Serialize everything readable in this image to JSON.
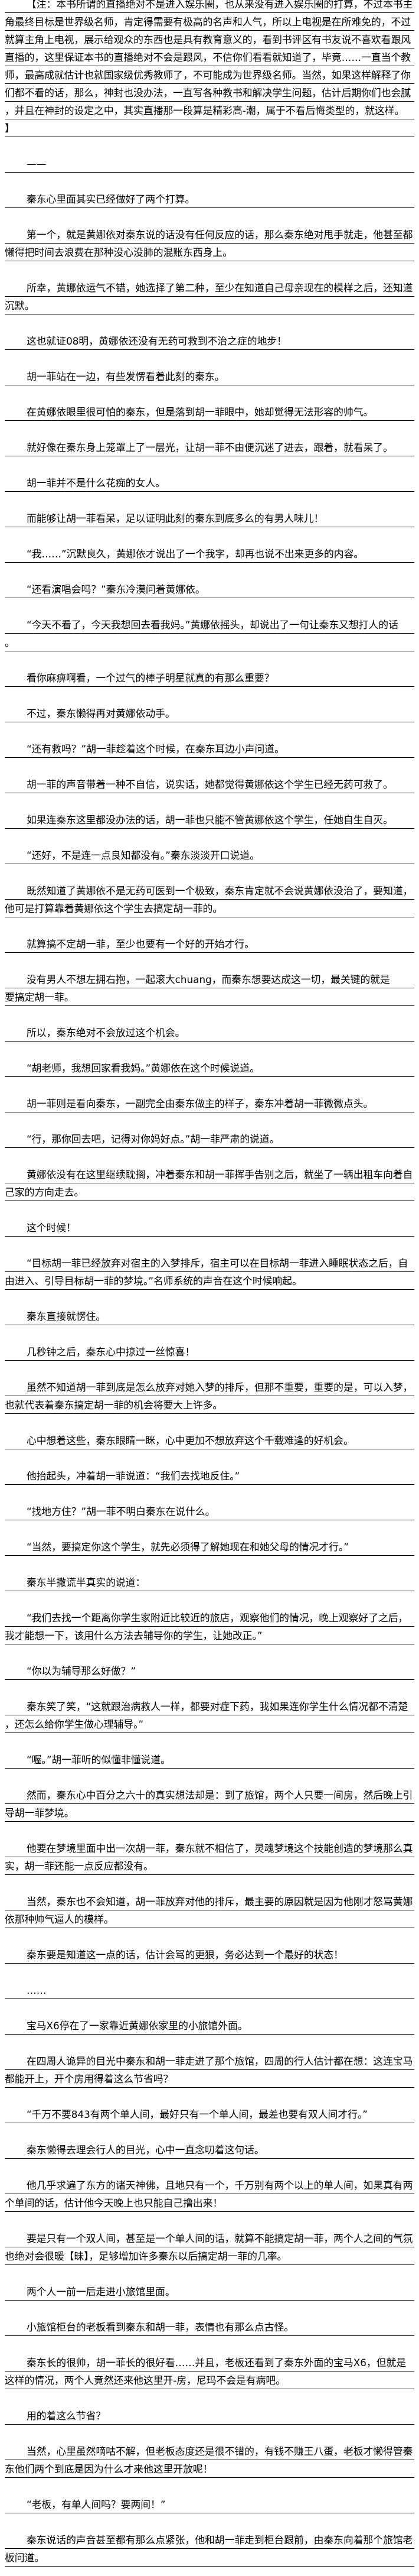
{
  "note": {
    "lines": [
      "【注：本书所谓的直播绝对不是进入娱乐圈，也从来没有进入娱乐圈的打算，不过本书主",
      "角最终目标是世界级名师，肯定得需要有极高的名声和人气，所以上电视是在所难免的，不过",
      "就算主角上电视，展示给观众的东西也是具有教育意义的，看到书评区有书友说不喜欢看跟风",
      "直播的，这里保证本书的直播绝对不会是跟风，不信你们看看就知道了，毕竟……一直当个教",
      "师，最高成就估计也就国家级优秀教师了，不可能成为世界级名师。当然，如果这样解释了你",
      "们都不看的话，那么，神封也没办法，一直写各种教书和解决学生问题，估计后期你们也会腻",
      "，并且在神封的设定之中，其实直播那一段算是精彩高-潮，属于不看后悔类型的，就这样。",
      "】"
    ]
  },
  "paragraphs": [
    [
      "——"
    ],
    [
      "秦东心里面其实已经做好了两个打算。"
    ],
    [
      "第一个，就是黄娜依对秦东说的话没有任何反应的话，那么秦东绝对甩手就走，他甚至都",
      "懒得把时间去浪费在那种没心没肺的混账东西身上。"
    ],
    [
      "所幸，黄娜依运气不错，她选择了第二种，至少在知道自己母亲现在的模样之后，还知道",
      "沉默。"
    ],
    [
      "这也就证08明，黄娜依还没有无药可救到不治之症的地步！"
    ],
    [
      "胡一菲站在一边，有些发愣看着此刻的秦东。"
    ],
    [
      "在黄娜依眼里很可怕的秦东，但是落到胡一菲眼中，她却觉得无法形容的帅气。"
    ],
    [
      "就好像在秦东身上笼罩上了一层光，让胡一菲不由便沉迷了进去，跟着，就看呆了。"
    ],
    [
      "胡一菲并不是什么花痴的女人。"
    ],
    [
      "而能够让胡一菲看呆，足以证明此刻的秦东到底多么的有男人味儿！"
    ],
    [
      "“我……”沉默良久，黄娜依才说出了一个我字，却再也说不出来更多的内容。"
    ],
    [
      "“还看演唱会吗？”秦东冷漠问着黄娜依。"
    ],
    [
      "“今天不看了，今天我想回去看我妈。”黄娜依摇头，却说出了一句让秦东又想打人的话",
      "。"
    ],
    [
      "看你麻痹啊看，一个过气的棒子明星就真的有那么重要？"
    ],
    [
      "不过，秦东懒得再对黄娜依动手。"
    ],
    [
      "“还有救吗？”胡一菲趁着这个时候，在秦东耳边小声问道。"
    ],
    [
      "胡一菲的声音带着一种不自信，说实话，她都觉得黄娜依这个学生已经无药可救了。"
    ],
    [
      "如果连秦东这里都没办法的话，胡一菲也只能不管黄娜依这个学生，任她自生自灭。"
    ],
    [
      "“还好，不是连一点良知都没有。”秦东淡淡开口说道。"
    ],
    [
      "既然知道了黄娜依不是无药可医到一个极致，秦东肯定就不会说黄娜依没治了，要知道，",
      "他可是打算靠着黄娜依这个学生去搞定胡一菲的。"
    ],
    [
      "就算搞不定胡一菲，至少也要有一个好的开始才行。"
    ],
    [
      "没有男人不想左拥右抱，一起滚大chuang，而秦东想要达成这一切，最关键的就是",
      "要搞定胡一菲。"
    ],
    [
      "所以，秦东绝对不会放过这个机会。"
    ],
    [
      "“胡老师，我想回家看我妈。”黄娜依在这个时候说道。"
    ],
    [
      "胡一菲则是看向秦东，一副完全由秦东做主的样子，秦东冲着胡一菲微微点头。"
    ],
    [
      "“行，那你回去吧，记得对你妈好点。”胡一菲严肃的说道。"
    ],
    [
      "黄娜依没有在这里继续耽搁，冲着秦东和胡一菲挥手告别之后，就坐了一辆出租车向着自",
      "己家的方向走去。"
    ],
    [
      "这个时候！"
    ],
    [
      "“目标胡一菲已经放弃对宿主的入梦排斥，宿主可以在目标胡一菲进入睡眠状态之后，自",
      "由进入、引导目标胡一菲的梦境。”名师系统的声音在这个时候响起。"
    ],
    [
      "秦东直接就愣住。"
    ],
    [
      "几秒钟之后，秦东心中掠过一丝惊喜！"
    ],
    [
      "虽然不知道胡一菲到底是怎么放弃对她入梦的排斥，但那不重要，重要的是，可以入梦，",
      "也就代表着秦东搞定胡一菲的机会将要大上许多。"
    ],
    [
      "心中想着这些，秦东眼睛一眯，心中更加不想放弃这个千载难逢的好机会。"
    ],
    [
      "他抬起头，冲着胡一菲说道：“我们去找地反住。”"
    ],
    [
      "“找地方住？”胡一菲不明白秦东在说什么。"
    ],
    [
      "“当然，要搞定你这个学生，就先必须得了解她现在和她父母的情况才行。”"
    ],
    [
      "秦东半撒谎半真实的说道："
    ],
    [
      "“我们去找一个距离你学生家附近比较近的旅店，观察他们的情况，晚上观察好了之后，",
      "我才能想一下，该用什么方法去辅导你的学生，让她改正。”"
    ],
    [
      "“你以为辅导那么好做？”"
    ],
    [
      "秦东笑了笑，“这就跟治病救人一样，都要对症下药，我如果连你学生什么情况都不清楚",
      "，还怎么给你学生做心理辅导。”"
    ],
    [
      "“喔。”胡一菲听的似懂非懂说道。"
    ],
    [
      "然而，秦东心中百分之六十的真实想法却是：到了旅馆，两个人只要一间房，然后晚上引",
      "导胡一菲梦境。"
    ],
    [
      "他要在梦境里面中出一次胡一菲，秦东就不相信了，灵魂梦境这个技能创造的梦境那么真",
      "实，胡一菲还能一点反应都没有。"
    ],
    [
      "当然，秦东也不会知道，胡一菲放弃对他的排斥，最主要的原因就是因为他刚才怒骂黄娜",
      "依那种帅气逼人的模样。"
    ],
    [
      "秦东要是知道这一点的话，估计会骂的更狠，务必达到一个最好的状态！"
    ],
    [
      "……"
    ],
    [
      "宝马X6停在了一家靠近黄娜依家里的小旅馆外面。"
    ],
    [
      "在四周人诡异的目光中秦东和胡一菲走进了那个旅馆，四周的行人估计都在想：这连宝马",
      "都能开上，开个房用得着这么节省吗？"
    ],
    [
      "“千万不要843有两个单人间，最好只有一个单人间，最差也要有双人间才行。”"
    ],
    [
      "秦东懒得去理会行人的目光，心中一直念叨着这句话。"
    ],
    [
      "他几乎求遍了东方的诸天神佛，且地只有一个，千万别有两个以上的单人间，如果真有两",
      "个单间的话，估计他今天晚上也只能自己撸出来！"
    ],
    [
      "要是只有一个双人间，甚至是一个单人间的话，就算不能搞定胡一菲，两个人之间的气氛",
      "也绝对会很暖【昧】，足够增加许多秦东以后搞定胡一菲的几率。"
    ],
    [
      "两个人一前一后走进小旅馆里面。"
    ],
    [
      "小旅馆柜台的老板看到秦东和胡一菲，表情也有那么点古怪。"
    ],
    [
      "秦东长的很帅，胡一菲长的很好看……并且，老板还看到了秦东外面的宝马X6，但就是",
      "这样的情况，两个人竟然还来他这里开-房，尼玛不会是有病吧。"
    ],
    [
      "用的着这么节省？"
    ],
    [
      "当然，心里虽然嘀咕不解，但老板态度还是很不错的，有钱不赚王八蛋，老板才懒得管秦",
      "东他们两个到底是因为什么才来他这里开放呢！"
    ],
    [
      "“老板，有单人间吗？要两间！”"
    ],
    [
      "秦东说话的声音甚至都有那么点紧张，他和胡一菲走到柜台跟前，由秦东向着那个旅馆老",
      "板问道。"
    ]
  ]
}
